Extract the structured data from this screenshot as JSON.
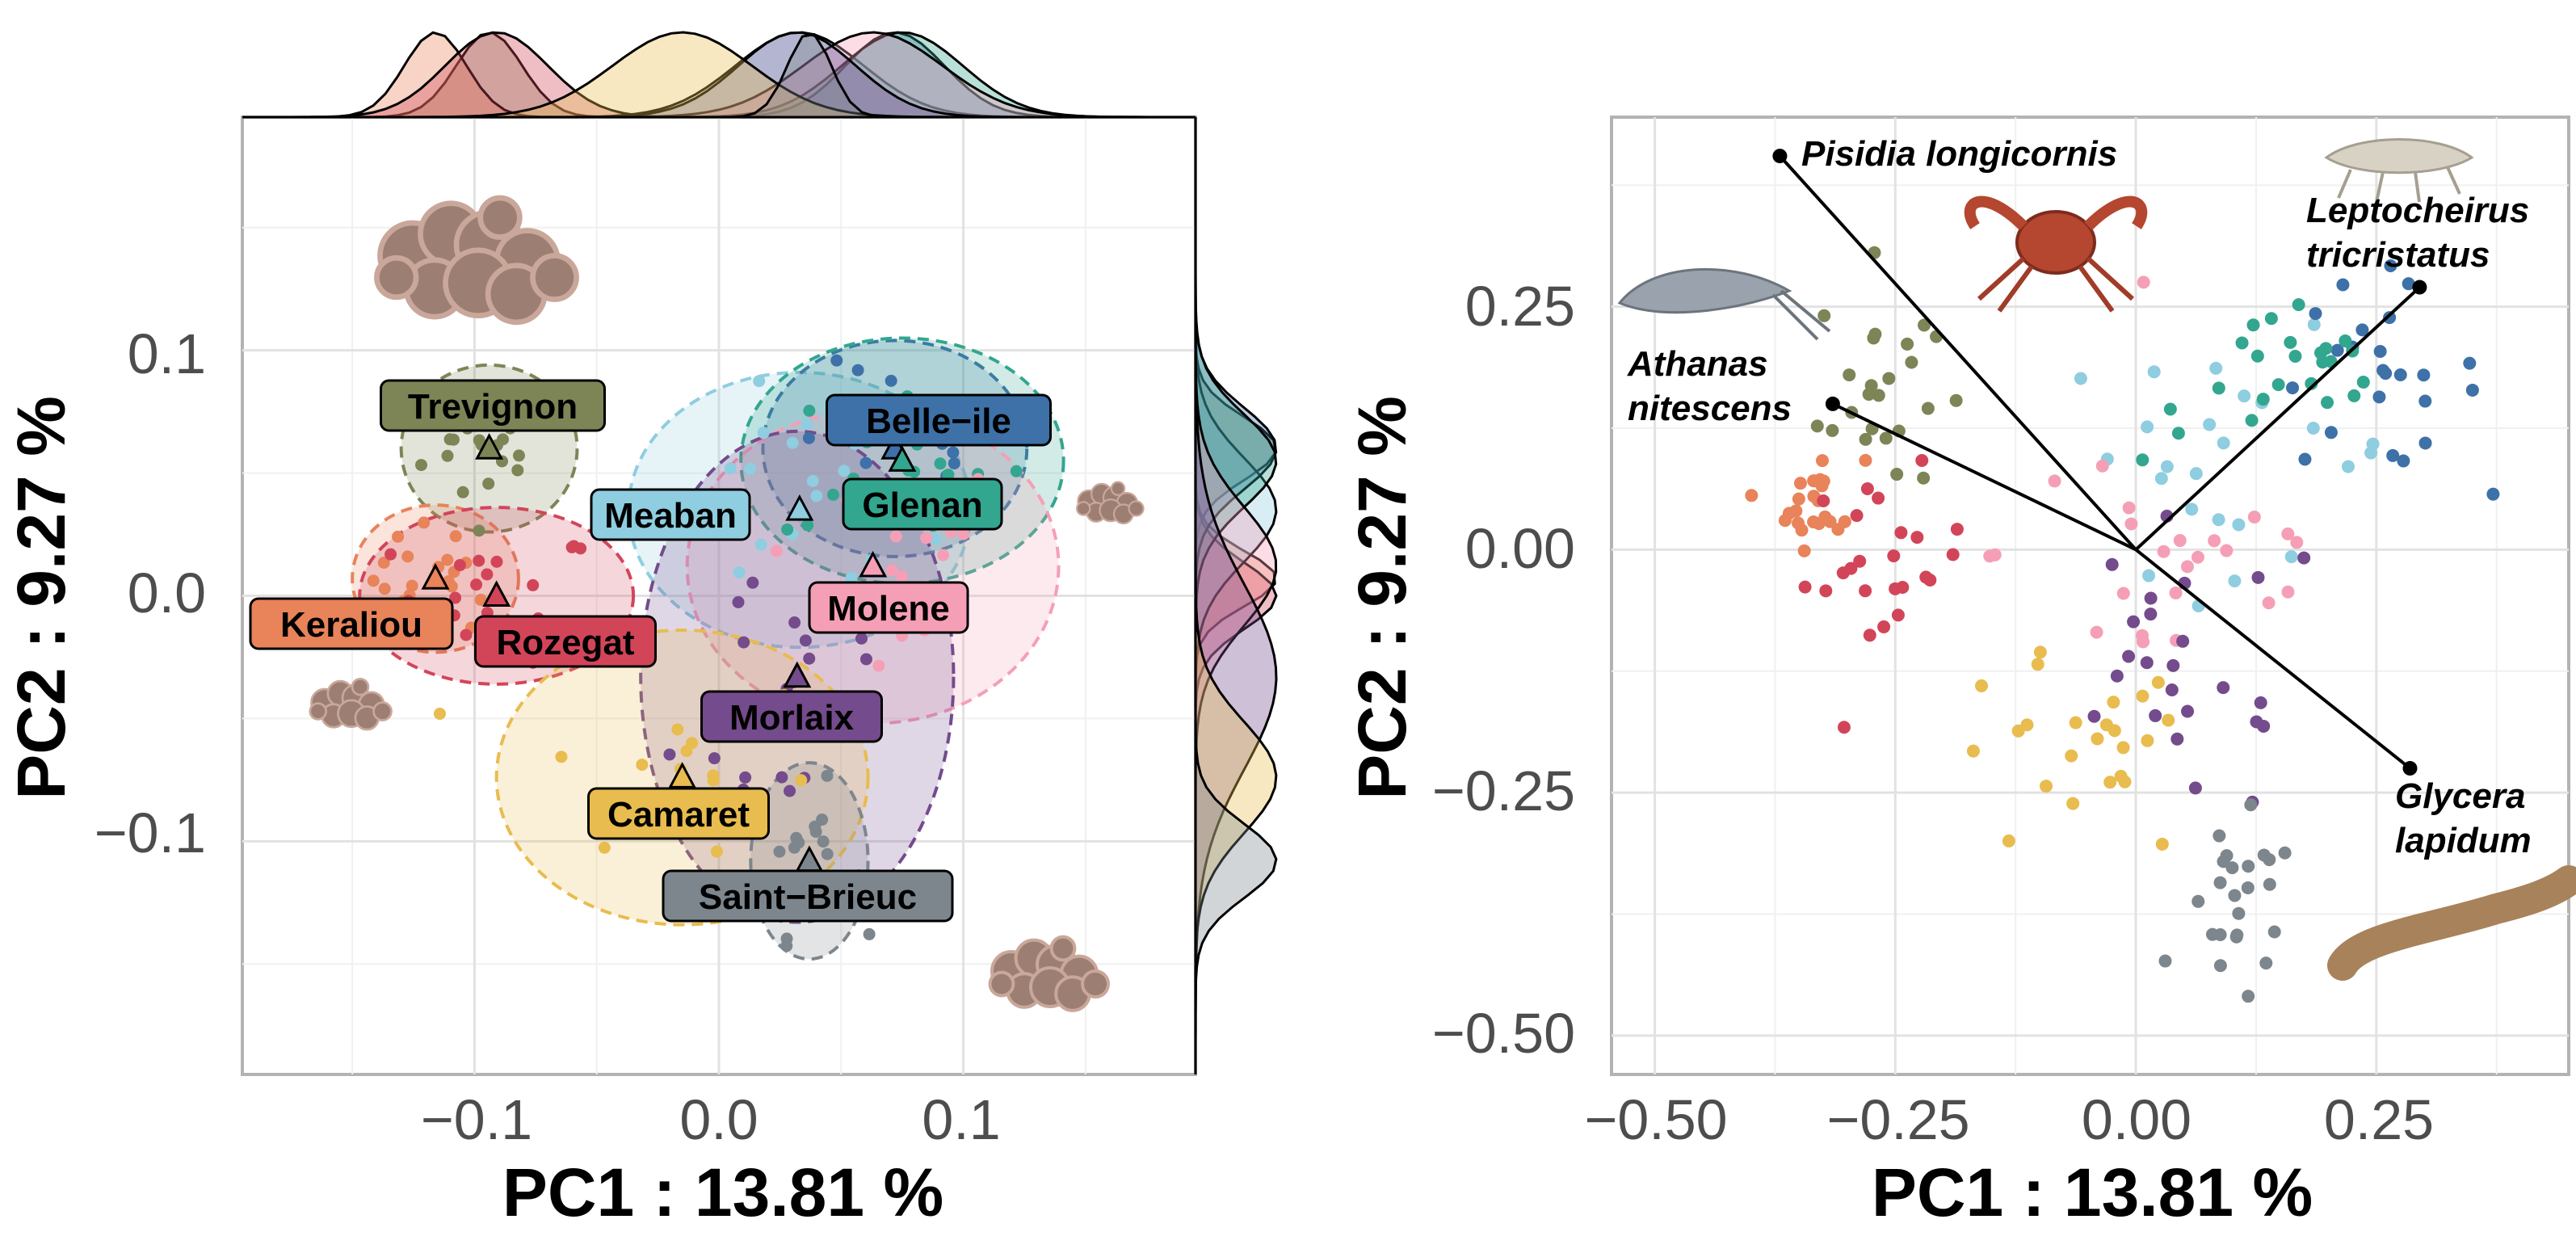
{
  "sites": [
    {
      "name": "Trevignon",
      "color": "#7d8556"
    },
    {
      "name": "Keraliou",
      "color": "#e8835a"
    },
    {
      "name": "Rozegat",
      "color": "#d24559"
    },
    {
      "name": "Meaban",
      "color": "#8fcde0"
    },
    {
      "name": "Belle−ile",
      "color": "#3d71a8"
    },
    {
      "name": "Glenan",
      "color": "#33a68f"
    },
    {
      "name": "Molene",
      "color": "#f59fb6"
    },
    {
      "name": "Morlaix",
      "color": "#744b8c"
    },
    {
      "name": "Camaret",
      "color": "#e8bc4e"
    },
    {
      "name": "Saint−Brieuc",
      "color": "#7d868d"
    }
  ],
  "icons": [
    "maerl-coralline-icon",
    "maerl-coralline-icon",
    "maerl-coralline-icon",
    "maerl-coralline-icon",
    "shrimp-icon",
    "crab-icon",
    "amphipod-icon",
    "worm-icon"
  ],
  "chart_data": [
    {
      "type": "scatter",
      "title": "",
      "xlabel": "PC1 :  13.81 %",
      "ylabel": "PC2 :  9.27 %",
      "xlim": [
        -0.195,
        0.195
      ],
      "ylim": [
        -0.195,
        0.195
      ],
      "xticks": [
        "−0.1",
        "0.0",
        "0.1"
      ],
      "yticks": [
        "0.1",
        "0.0",
        "−0.1"
      ],
      "grid": true,
      "marginal_densities": [
        "top",
        "right"
      ],
      "ellipses": "dashed 95% per site",
      "centroids": [
        {
          "site": "Trevignon",
          "x": -0.094,
          "y": 0.06
        },
        {
          "site": "Keraliou",
          "x": -0.116,
          "y": 0.007
        },
        {
          "site": "Rozegat",
          "x": -0.091,
          "y": 0.0
        },
        {
          "site": "Meaban",
          "x": 0.033,
          "y": 0.035
        },
        {
          "site": "Belle−ile",
          "x": 0.072,
          "y": 0.06
        },
        {
          "site": "Glenan",
          "x": 0.075,
          "y": 0.055
        },
        {
          "site": "Molene",
          "x": 0.063,
          "y": 0.012
        },
        {
          "site": "Morlaix",
          "x": 0.032,
          "y": -0.033
        },
        {
          "site": "Camaret",
          "x": -0.015,
          "y": -0.074
        },
        {
          "site": "Saint−Brieuc",
          "x": 0.037,
          "y": -0.108
        }
      ],
      "spreads": {
        "Trevignon": [
          0.018,
          0.017
        ],
        "Keraliou": [
          0.017,
          0.015
        ],
        "Rozegat": [
          0.028,
          0.018
        ],
        "Meaban": [
          0.035,
          0.028
        ],
        "Belle−ile": [
          0.027,
          0.022
        ],
        "Glenan": [
          0.033,
          0.025
        ],
        "Molene": [
          0.038,
          0.032
        ],
        "Morlaix": [
          0.032,
          0.05
        ],
        "Camaret": [
          0.038,
          0.03
        ],
        "Saint−Brieuc": [
          0.012,
          0.02
        ]
      }
    },
    {
      "type": "scatter",
      "title": "",
      "xlabel": "PC1 :  13.81 %",
      "ylabel": "PC2 :  9.27 %",
      "xlim": [
        -0.545,
        0.45
      ],
      "ylim": [
        -0.54,
        0.445
      ],
      "xticks": [
        "−0.50",
        "−0.25",
        "0.00",
        "0.25"
      ],
      "yticks": [
        "0.25",
        "0.00",
        "−0.25",
        "−0.50"
      ],
      "grid": true,
      "species_vectors": [
        {
          "label": "Pisidia longicornis",
          "x": -0.37,
          "y": 0.405
        },
        {
          "label": "Athanas nitescens",
          "x": -0.315,
          "y": 0.15
        },
        {
          "label": "Leptocheirus tricristatus",
          "x": 0.295,
          "y": 0.27
        },
        {
          "label": "Glycera lapidum",
          "x": 0.285,
          "y": -0.225
        }
      ],
      "species_label_lines": [
        [
          "Pisidia longicornis"
        ],
        [
          "Athanas",
          "nitescens"
        ],
        [
          "Leptocheirus",
          "tricristatus"
        ],
        [
          "Glycera",
          "lapidum"
        ]
      ],
      "centroids": [
        {
          "site": "Trevignon",
          "x": -0.27,
          "y": 0.17
        },
        {
          "site": "Keraliou",
          "x": -0.33,
          "y": 0.05
        },
        {
          "site": "Rozegat",
          "x": -0.26,
          "y": -0.02
        },
        {
          "site": "Meaban",
          "x": 0.1,
          "y": 0.1
        },
        {
          "site": "Belle−ile",
          "x": 0.25,
          "y": 0.18
        },
        {
          "site": "Glenan",
          "x": 0.15,
          "y": 0.17
        },
        {
          "site": "Molene",
          "x": 0.05,
          "y": 0.0
        },
        {
          "site": "Morlaix",
          "x": 0.05,
          "y": -0.13
        },
        {
          "site": "Camaret",
          "x": -0.07,
          "y": -0.22
        },
        {
          "site": "Saint−Brieuc",
          "x": 0.11,
          "y": -0.38
        }
      ],
      "spreads": {
        "Trevignon": [
          0.05,
          0.1
        ],
        "Keraliou": [
          0.04,
          0.04
        ],
        "Rozegat": [
          0.07,
          0.08
        ],
        "Meaban": [
          0.15,
          0.1
        ],
        "Belle−ile": [
          0.09,
          0.08
        ],
        "Glenan": [
          0.12,
          0.07
        ],
        "Molene": [
          0.16,
          0.14
        ],
        "Morlaix": [
          0.13,
          0.13
        ],
        "Camaret": [
          0.11,
          0.09
        ],
        "Saint−Brieuc": [
          0.05,
          0.08
        ]
      }
    }
  ]
}
